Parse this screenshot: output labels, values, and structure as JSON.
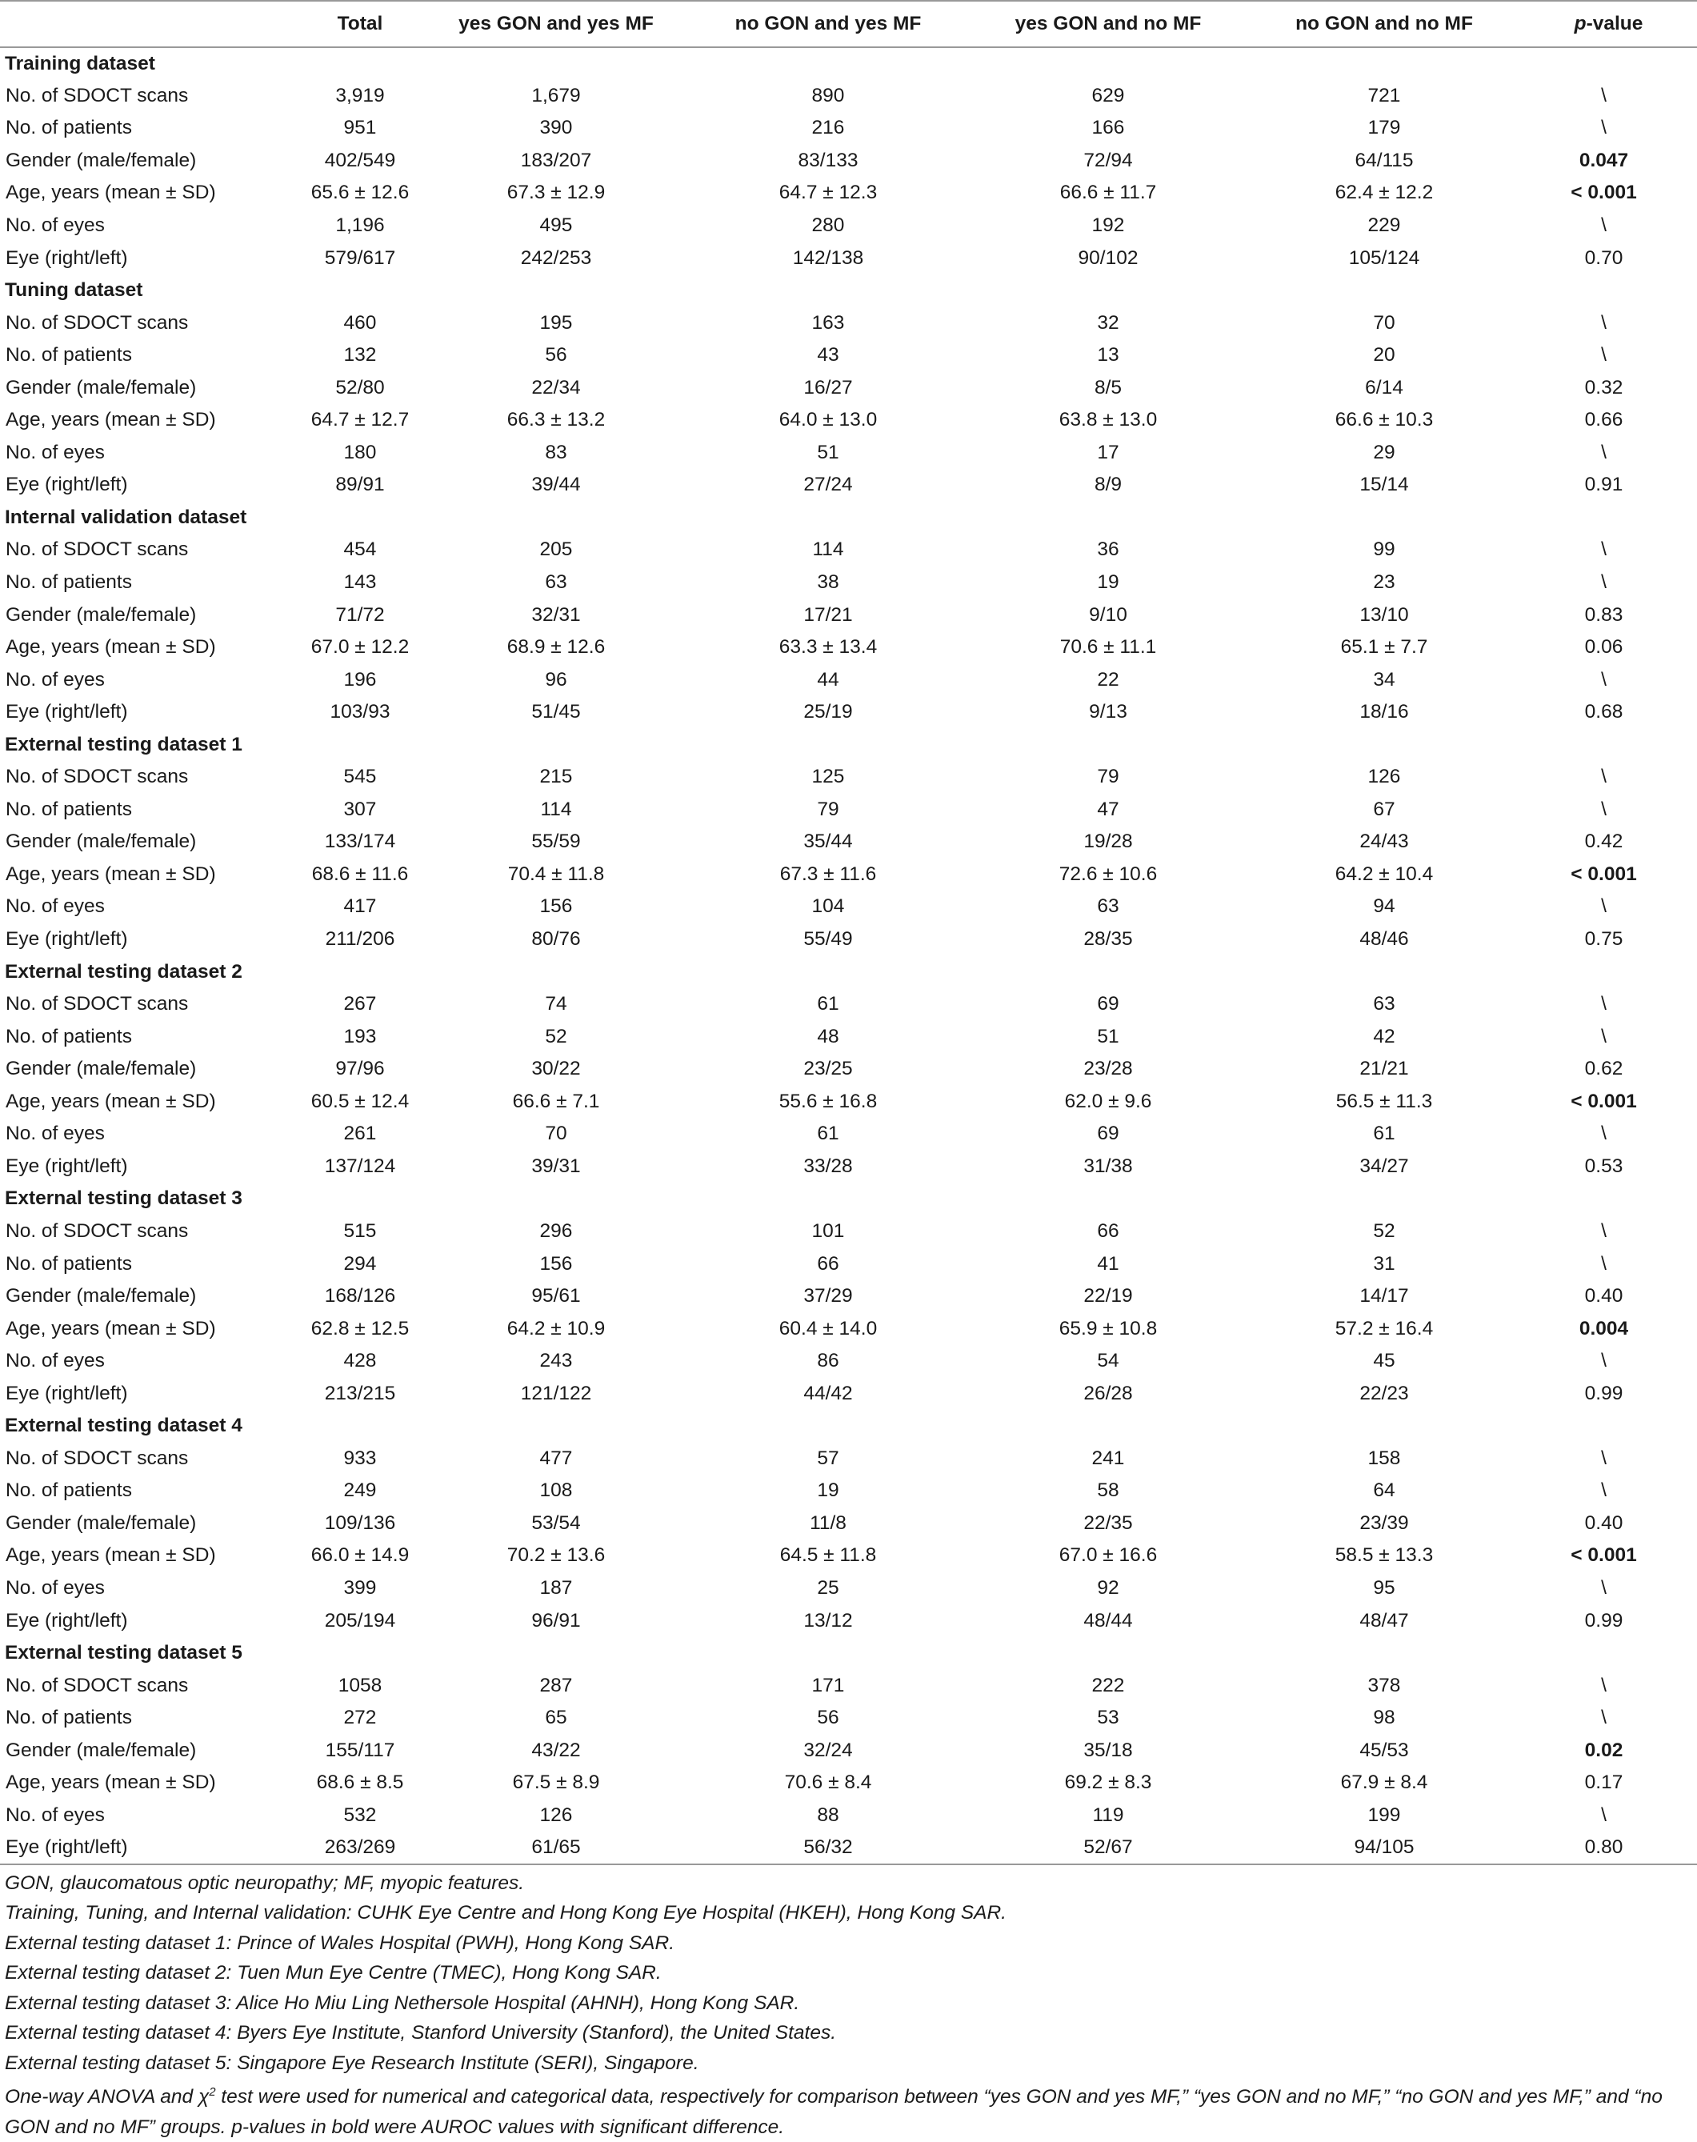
{
  "table": {
    "headers": [
      "",
      "Total",
      "yes GON and yes MF",
      "no GON and yes MF",
      "yes GON and no MF",
      "no GON and no MF",
      "p-value"
    ],
    "sections": [
      {
        "title": "Training dataset",
        "rows": [
          {
            "label": "No. of SDOCT scans",
            "cells": [
              "3,919",
              "1,679",
              "890",
              "629",
              "721"
            ],
            "p": "\\",
            "bold": false
          },
          {
            "label": "No. of patients",
            "cells": [
              "951",
              "390",
              "216",
              "166",
              "179"
            ],
            "p": "\\",
            "bold": false
          },
          {
            "label": "Gender (male/female)",
            "cells": [
              "402/549",
              "183/207",
              "83/133",
              "72/94",
              "64/115"
            ],
            "p": "0.047",
            "bold": true
          },
          {
            "label": "Age, years (mean ± SD)",
            "cells": [
              "65.6 ± 12.6",
              "67.3 ± 12.9",
              "64.7 ± 12.3",
              "66.6 ± 11.7",
              "62.4 ± 12.2"
            ],
            "p": "< 0.001",
            "bold": true
          },
          {
            "label": "No. of eyes",
            "cells": [
              "1,196",
              "495",
              "280",
              "192",
              "229"
            ],
            "p": "\\",
            "bold": false
          },
          {
            "label": "Eye (right/left)",
            "cells": [
              "579/617",
              "242/253",
              "142/138",
              "90/102",
              "105/124"
            ],
            "p": "0.70",
            "bold": false
          }
        ]
      },
      {
        "title": "Tuning dataset",
        "rows": [
          {
            "label": "No. of SDOCT scans",
            "cells": [
              "460",
              "195",
              "163",
              "32",
              "70"
            ],
            "p": "\\",
            "bold": false
          },
          {
            "label": "No. of patients",
            "cells": [
              "132",
              "56",
              "43",
              "13",
              "20"
            ],
            "p": "\\",
            "bold": false
          },
          {
            "label": "Gender (male/female)",
            "cells": [
              "52/80",
              "22/34",
              "16/27",
              "8/5",
              "6/14"
            ],
            "p": "0.32",
            "bold": false
          },
          {
            "label": "Age, years (mean ± SD)",
            "cells": [
              "64.7 ± 12.7",
              "66.3 ± 13.2",
              "64.0 ± 13.0",
              "63.8 ± 13.0",
              "66.6 ± 10.3"
            ],
            "p": "0.66",
            "bold": false
          },
          {
            "label": "No. of eyes",
            "cells": [
              "180",
              "83",
              "51",
              "17",
              "29"
            ],
            "p": "\\",
            "bold": false
          },
          {
            "label": "Eye (right/left)",
            "cells": [
              "89/91",
              "39/44",
              "27/24",
              "8/9",
              "15/14"
            ],
            "p": "0.91",
            "bold": false
          }
        ]
      },
      {
        "title": "Internal validation dataset",
        "rows": [
          {
            "label": "No. of SDOCT scans",
            "cells": [
              "454",
              "205",
              "114",
              "36",
              "99"
            ],
            "p": "\\",
            "bold": false
          },
          {
            "label": "No. of patients",
            "cells": [
              "143",
              "63",
              "38",
              "19",
              "23"
            ],
            "p": "\\",
            "bold": false
          },
          {
            "label": "Gender (male/female)",
            "cells": [
              "71/72",
              "32/31",
              "17/21",
              "9/10",
              "13/10"
            ],
            "p": "0.83",
            "bold": false
          },
          {
            "label": "Age, years (mean ± SD)",
            "cells": [
              "67.0 ± 12.2",
              "68.9 ± 12.6",
              "63.3 ± 13.4",
              "70.6 ± 11.1",
              "65.1 ± 7.7"
            ],
            "p": "0.06",
            "bold": false
          },
          {
            "label": "No. of eyes",
            "cells": [
              "196",
              "96",
              "44",
              "22",
              "34"
            ],
            "p": "\\",
            "bold": false
          },
          {
            "label": "Eye (right/left)",
            "cells": [
              "103/93",
              "51/45",
              "25/19",
              "9/13",
              "18/16"
            ],
            "p": "0.68",
            "bold": false
          }
        ]
      },
      {
        "title": "External testing dataset 1",
        "rows": [
          {
            "label": "No. of SDOCT scans",
            "cells": [
              "545",
              "215",
              "125",
              "79",
              "126"
            ],
            "p": "\\",
            "bold": false
          },
          {
            "label": "No. of patients",
            "cells": [
              "307",
              "114",
              "79",
              "47",
              "67"
            ],
            "p": "\\",
            "bold": false
          },
          {
            "label": "Gender (male/female)",
            "cells": [
              "133/174",
              "55/59",
              "35/44",
              "19/28",
              "24/43"
            ],
            "p": "0.42",
            "bold": false
          },
          {
            "label": "Age, years (mean ± SD)",
            "cells": [
              "68.6 ± 11.6",
              "70.4 ± 11.8",
              "67.3 ± 11.6",
              "72.6 ± 10.6",
              "64.2 ± 10.4"
            ],
            "p": "< 0.001",
            "bold": true
          },
          {
            "label": "No. of eyes",
            "cells": [
              "417",
              "156",
              "104",
              "63",
              "94"
            ],
            "p": "\\",
            "bold": false
          },
          {
            "label": "Eye (right/left)",
            "cells": [
              "211/206",
              "80/76",
              "55/49",
              "28/35",
              "48/46"
            ],
            "p": "0.75",
            "bold": false
          }
        ]
      },
      {
        "title": "External testing dataset 2",
        "rows": [
          {
            "label": "No. of SDOCT scans",
            "cells": [
              "267",
              "74",
              "61",
              "69",
              "63"
            ],
            "p": "\\",
            "bold": false
          },
          {
            "label": "No. of patients",
            "cells": [
              "193",
              "52",
              "48",
              "51",
              "42"
            ],
            "p": "\\",
            "bold": false
          },
          {
            "label": "Gender (male/female)",
            "cells": [
              "97/96",
              "30/22",
              "23/25",
              "23/28",
              "21/21"
            ],
            "p": "0.62",
            "bold": false
          },
          {
            "label": "Age, years (mean ± SD)",
            "cells": [
              "60.5 ± 12.4",
              "66.6 ± 7.1",
              "55.6 ± 16.8",
              "62.0 ± 9.6",
              "56.5 ± 11.3"
            ],
            "p": "< 0.001",
            "bold": true
          },
          {
            "label": "No. of eyes",
            "cells": [
              "261",
              "70",
              "61",
              "69",
              "61"
            ],
            "p": "\\",
            "bold": false
          },
          {
            "label": "Eye (right/left)",
            "cells": [
              "137/124",
              "39/31",
              "33/28",
              "31/38",
              "34/27"
            ],
            "p": "0.53",
            "bold": false
          }
        ]
      },
      {
        "title": "External testing dataset 3",
        "rows": [
          {
            "label": "No. of SDOCT scans",
            "cells": [
              "515",
              "296",
              "101",
              "66",
              "52"
            ],
            "p": "\\",
            "bold": false
          },
          {
            "label": "No. of patients",
            "cells": [
              "294",
              "156",
              "66",
              "41",
              "31"
            ],
            "p": "\\",
            "bold": false
          },
          {
            "label": "Gender (male/female)",
            "cells": [
              "168/126",
              "95/61",
              "37/29",
              "22/19",
              "14/17"
            ],
            "p": "0.40",
            "bold": false
          },
          {
            "label": "Age, years (mean ± SD)",
            "cells": [
              "62.8 ± 12.5",
              "64.2 ± 10.9",
              "60.4 ± 14.0",
              "65.9 ± 10.8",
              "57.2 ± 16.4"
            ],
            "p": "0.004",
            "bold": true
          },
          {
            "label": "No. of eyes",
            "cells": [
              "428",
              "243",
              "86",
              "54",
              "45"
            ],
            "p": "\\",
            "bold": false
          },
          {
            "label": "Eye (right/left)",
            "cells": [
              "213/215",
              "121/122",
              "44/42",
              "26/28",
              "22/23"
            ],
            "p": "0.99",
            "bold": false
          }
        ]
      },
      {
        "title": "External testing dataset 4",
        "rows": [
          {
            "label": "No. of SDOCT scans",
            "cells": [
              "933",
              "477",
              "57",
              "241",
              "158"
            ],
            "p": "\\",
            "bold": false
          },
          {
            "label": "No. of patients",
            "cells": [
              "249",
              "108",
              "19",
              "58",
              "64"
            ],
            "p": "\\",
            "bold": false
          },
          {
            "label": "Gender (male/female)",
            "cells": [
              "109/136",
              "53/54",
              "11/8",
              "22/35",
              "23/39"
            ],
            "p": "0.40",
            "bold": false
          },
          {
            "label": "Age, years (mean ± SD)",
            "cells": [
              "66.0 ± 14.9",
              "70.2 ± 13.6",
              "64.5 ± 11.8",
              "67.0 ± 16.6",
              "58.5 ± 13.3"
            ],
            "p": "< 0.001",
            "bold": true
          },
          {
            "label": "No. of eyes",
            "cells": [
              "399",
              "187",
              "25",
              "92",
              "95"
            ],
            "p": "\\",
            "bold": false
          },
          {
            "label": "Eye (right/left)",
            "cells": [
              "205/194",
              "96/91",
              "13/12",
              "48/44",
              "48/47"
            ],
            "p": "0.99",
            "bold": false
          }
        ]
      },
      {
        "title": "External testing dataset 5",
        "rows": [
          {
            "label": "No. of SDOCT scans",
            "cells": [
              "1058",
              "287",
              "171",
              "222",
              "378"
            ],
            "p": "\\",
            "bold": false
          },
          {
            "label": "No. of patients",
            "cells": [
              "272",
              "65",
              "56",
              "53",
              "98"
            ],
            "p": "\\",
            "bold": false
          },
          {
            "label": "Gender (male/female)",
            "cells": [
              "155/117",
              "43/22",
              "32/24",
              "35/18",
              "45/53"
            ],
            "p": "0.02",
            "bold": true
          },
          {
            "label": "Age, years (mean ± SD)",
            "cells": [
              "68.6 ± 8.5",
              "67.5 ± 8.9",
              "70.6 ± 8.4",
              "69.2 ± 8.3",
              "67.9 ± 8.4"
            ],
            "p": "0.17",
            "bold": false
          },
          {
            "label": "No. of eyes",
            "cells": [
              "532",
              "126",
              "88",
              "119",
              "199"
            ],
            "p": "\\",
            "bold": false
          },
          {
            "label": "Eye (right/left)",
            "cells": [
              "263/269",
              "61/65",
              "56/32",
              "52/67",
              "94/105"
            ],
            "p": "0.80",
            "bold": false
          }
        ]
      }
    ]
  },
  "notes": {
    "abbrev": "GON, glaucomatous optic neuropathy; MF, myopic features.",
    "lines": [
      "Training, Tuning, and Internal validation: CUHK Eye Centre and Hong Kong Eye Hospital (HKEH), Hong Kong SAR.",
      "External testing dataset 1: Prince of Wales Hospital (PWH), Hong Kong SAR.",
      "External testing dataset 2: Tuen Mun Eye Centre (TMEC), Hong Kong SAR.",
      "External testing dataset 3: Alice Ho Miu Ling Nethersole Hospital (AHNH), Hong Kong SAR.",
      "External testing dataset 4: Byers Eye Institute, Stanford University (Stanford), the United States.",
      "External testing dataset 5: Singapore Eye Research Institute (SERI), Singapore."
    ],
    "methods_pre": "One-way ANOVA and χ",
    "methods_sup": "2",
    "methods_post": " test were used for numerical and categorical data, respectively for comparison between “yes GON and yes MF,” “yes GON and no MF,” “no GON and yes MF,” and “no GON and no MF” groups. p-values in bold were AUROC values with significant difference."
  }
}
